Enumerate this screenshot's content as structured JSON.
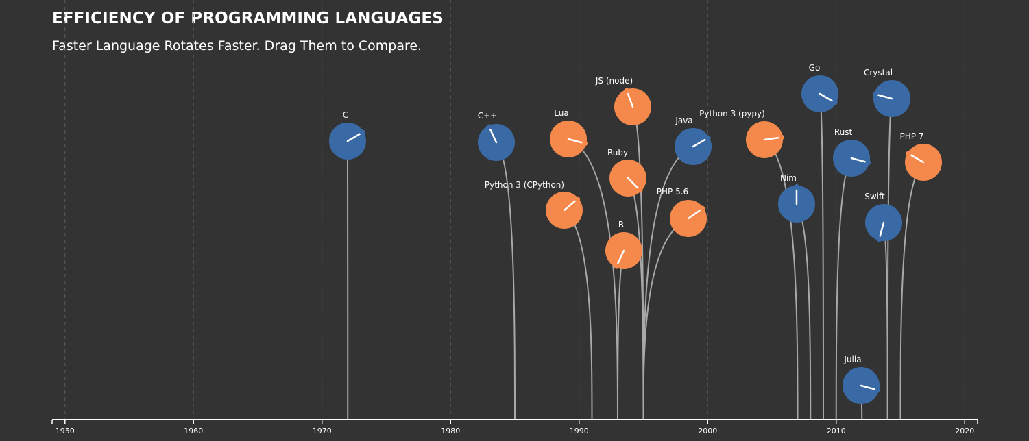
{
  "title": "EFFICIENCY OF PROGRAMMING LANGUAGES",
  "subtitle": "Faster Language Rotates Faster. Drag Them to Compare.",
  "colors": {
    "background": "#333333",
    "compiled": "#3a6aa6",
    "interpreted": "#f4894b",
    "stem": "#a9a9a9",
    "grid": "#5a5a5a"
  },
  "chart_data": {
    "type": "scatter",
    "xlabel": "",
    "xlim": [
      1949,
      2021
    ],
    "x_ticks": [
      1950,
      1960,
      1970,
      1980,
      1990,
      2000,
      2010,
      2020
    ],
    "grid": "vertical dashed",
    "series": [],
    "points": [
      {
        "name": "C",
        "year": 1972,
        "group": "compiled",
        "angle": -30
      },
      {
        "name": "C++",
        "year": 1985,
        "group": "compiled",
        "angle": 245
      },
      {
        "name": "Python 3 (CPython)",
        "year": 1991,
        "group": "interpreted",
        "angle": -40
      },
      {
        "name": "Lua",
        "year": 1993,
        "group": "interpreted",
        "angle": 15
      },
      {
        "name": "R",
        "year": 1993,
        "group": "interpreted",
        "angle": 115
      },
      {
        "name": "Ruby",
        "year": 1995,
        "group": "interpreted",
        "angle": 45
      },
      {
        "name": "JS (node)",
        "year": 1995,
        "group": "interpreted",
        "angle": 250
      },
      {
        "name": "PHP 5.6",
        "year": 1995,
        "group": "interpreted",
        "angle": -35
      },
      {
        "name": "Java",
        "year": 1995,
        "group": "compiled",
        "angle": -30
      },
      {
        "name": "Python 3 (pypy)",
        "year": 2007,
        "group": "interpreted",
        "angle": -8
      },
      {
        "name": "Nim",
        "year": 2008,
        "group": "compiled",
        "angle": -90
      },
      {
        "name": "Go",
        "year": 2009,
        "group": "compiled",
        "angle": 30
      },
      {
        "name": "Rust",
        "year": 2010,
        "group": "compiled",
        "angle": 15
      },
      {
        "name": "Julia",
        "year": 2012,
        "group": "compiled",
        "angle": 15
      },
      {
        "name": "Swift",
        "year": 2014,
        "group": "compiled",
        "angle": 105
      },
      {
        "name": "Crystal",
        "year": 2014,
        "group": "compiled",
        "angle": 195
      },
      {
        "name": "PHP 7",
        "year": 2015,
        "group": "interpreted",
        "angle": 210
      }
    ]
  }
}
